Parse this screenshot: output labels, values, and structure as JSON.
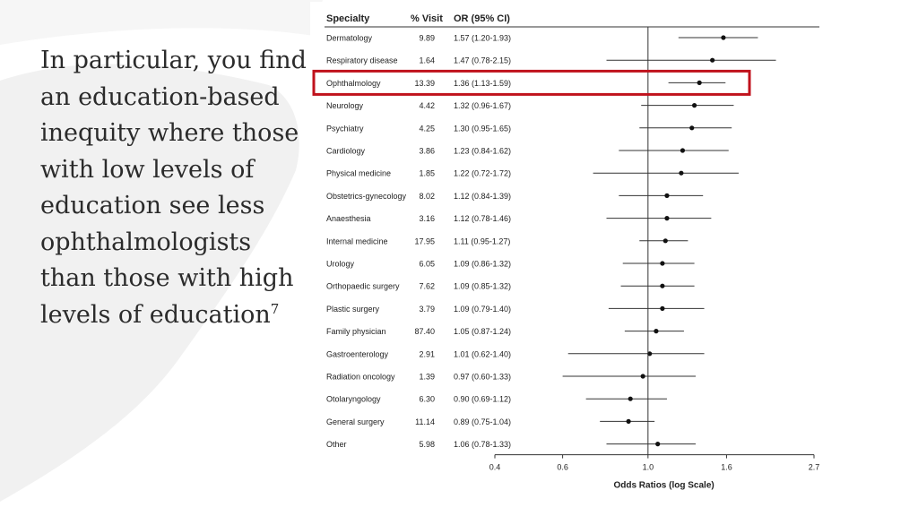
{
  "slide": {
    "text": "In particular, you find an education-based inequity where those with low levels of education see less ophthalmologists than those with high levels of education",
    "superscript": "7"
  },
  "colors": {
    "highlight": "#c0121c",
    "point": "#111111",
    "line": "#333333"
  },
  "chart_data": {
    "type": "forest",
    "columns": [
      "Specialty",
      "% Visit",
      "OR (95% CI)"
    ],
    "xlabel": "Odds Ratios (log Scale)",
    "x_scale": "log",
    "xlim": [
      0.4,
      2.7
    ],
    "x_ticks": [
      0.4,
      0.6,
      1.0,
      1.6,
      2.7
    ],
    "x_tick_labels": [
      "0.4",
      "0.6",
      "1.0",
      "1.6",
      "2.7"
    ],
    "reference_line": 1.0,
    "highlighted": "Ophthalmology",
    "rows": [
      {
        "specialty": "Dermatology",
        "visit": "9.89",
        "ci_text": "1.57 (1.20-1.93)",
        "or": 1.57,
        "lo": 1.2,
        "hi": 1.93
      },
      {
        "specialty": "Respiratory disease",
        "visit": "1.64",
        "ci_text": "1.47 (0.78-2.15)",
        "or": 1.47,
        "lo": 0.78,
        "hi": 2.15
      },
      {
        "specialty": "Ophthalmology",
        "visit": "13.39",
        "ci_text": "1.36 (1.13-1.59)",
        "or": 1.36,
        "lo": 1.13,
        "hi": 1.59
      },
      {
        "specialty": "Neurology",
        "visit": "4.42",
        "ci_text": "1.32 (0.96-1.67)",
        "or": 1.32,
        "lo": 0.96,
        "hi": 1.67
      },
      {
        "specialty": "Psychiatry",
        "visit": "4.25",
        "ci_text": "1.30 (0.95-1.65)",
        "or": 1.3,
        "lo": 0.95,
        "hi": 1.65
      },
      {
        "specialty": "Cardiology",
        "visit": "3.86",
        "ci_text": "1.23 (0.84-1.62)",
        "or": 1.23,
        "lo": 0.84,
        "hi": 1.62
      },
      {
        "specialty": "Physical medicine",
        "visit": "1.85",
        "ci_text": "1.22 (0.72-1.72)",
        "or": 1.22,
        "lo": 0.72,
        "hi": 1.72
      },
      {
        "specialty": "Obstetrics-gynecology",
        "visit": "8.02",
        "ci_text": "1.12 (0.84-1.39)",
        "or": 1.12,
        "lo": 0.84,
        "hi": 1.39
      },
      {
        "specialty": "Anaesthesia",
        "visit": "3.16",
        "ci_text": "1.12 (0.78-1.46)",
        "or": 1.12,
        "lo": 0.78,
        "hi": 1.46
      },
      {
        "specialty": "Internal medicine",
        "visit": "17.95",
        "ci_text": "1.11 (0.95-1.27)",
        "or": 1.11,
        "lo": 0.95,
        "hi": 1.27
      },
      {
        "specialty": "Urology",
        "visit": "6.05",
        "ci_text": "1.09 (0.86-1.32)",
        "or": 1.09,
        "lo": 0.86,
        "hi": 1.32
      },
      {
        "specialty": "Orthopaedic surgery",
        "visit": "7.62",
        "ci_text": "1.09 (0.85-1.32)",
        "or": 1.09,
        "lo": 0.85,
        "hi": 1.32
      },
      {
        "specialty": "Plastic surgery",
        "visit": "3.79",
        "ci_text": "1.09 (0.79-1.40)",
        "or": 1.09,
        "lo": 0.79,
        "hi": 1.4
      },
      {
        "specialty": "Family physician",
        "visit": "87.40",
        "ci_text": "1.05 (0.87-1.24)",
        "or": 1.05,
        "lo": 0.87,
        "hi": 1.24
      },
      {
        "specialty": "Gastroenterology",
        "visit": "2.91",
        "ci_text": "1.01 (0.62-1.40)",
        "or": 1.01,
        "lo": 0.62,
        "hi": 1.4
      },
      {
        "specialty": "Radiation oncology",
        "visit": "1.39",
        "ci_text": "0.97 (0.60-1.33)",
        "or": 0.97,
        "lo": 0.6,
        "hi": 1.33
      },
      {
        "specialty": "Otolaryngology",
        "visit": "6.30",
        "ci_text": "0.90 (0.69-1.12)",
        "or": 0.9,
        "lo": 0.69,
        "hi": 1.12
      },
      {
        "specialty": "General surgery",
        "visit": "11.14",
        "ci_text": "0.89 (0.75-1.04)",
        "or": 0.89,
        "lo": 0.75,
        "hi": 1.04
      },
      {
        "specialty": "Other",
        "visit": "5.98",
        "ci_text": "1.06 (0.78-1.33)",
        "or": 1.06,
        "lo": 0.78,
        "hi": 1.33
      }
    ]
  }
}
